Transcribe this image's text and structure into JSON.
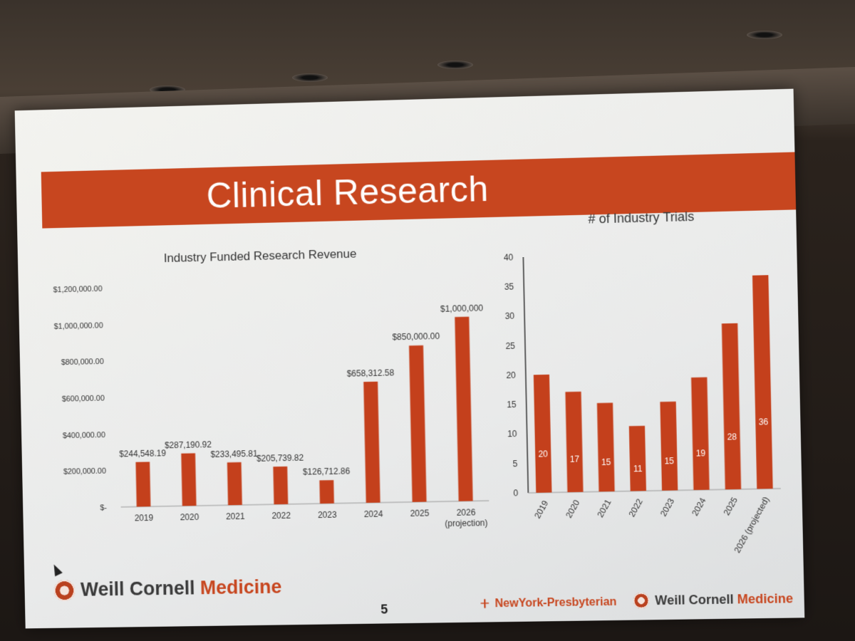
{
  "slide": {
    "title": "Clinical Research",
    "page_number": "5",
    "footer_left": {
      "part1": "Weill Cornell ",
      "part2": "Medicine"
    },
    "footer_right_1": "NewYork-Presbyterian",
    "footer_right_2": {
      "part1": "Weill Cornell ",
      "part2": "Medicine"
    }
  },
  "colors": {
    "accent": "#c7461f",
    "bar": "#c4401c",
    "slide_bg": "#ececea",
    "text": "#333333"
  },
  "chart_data": [
    {
      "type": "bar",
      "title": "Industry Funded Research Revenue",
      "categories": [
        "2019",
        "2020",
        "2021",
        "2022",
        "2023",
        "2024",
        "2025",
        "2026\n(projection)"
      ],
      "category_lines": [
        [
          "2019"
        ],
        [
          "2020"
        ],
        [
          "2021"
        ],
        [
          "2022"
        ],
        [
          "2023"
        ],
        [
          "2024"
        ],
        [
          "2025"
        ],
        [
          "2026",
          "(projection)"
        ]
      ],
      "values": [
        244548.19,
        287190.92,
        233495.81,
        205739.82,
        126712.86,
        658312.58,
        850000,
        1000000
      ],
      "data_labels": [
        "$244,548.19",
        "$287,190.92",
        "$233,495.81",
        "$205,739.82",
        "$126,712.86",
        "$658,312.58",
        "$850,000.00",
        "$1,000,000"
      ],
      "ylim": [
        0,
        1200000
      ],
      "yticks": [
        0,
        200000,
        400000,
        600000,
        800000,
        1000000,
        1200000
      ],
      "ytick_labels": [
        "$-",
        "$200,000.00",
        "$400,000.00",
        "$600,000.00",
        "$800,000.00",
        "$1,000,000.00",
        "$1,200,000.00"
      ],
      "xlabel": "",
      "ylabel": ""
    },
    {
      "type": "bar",
      "title": "# of Industry Trials",
      "categories": [
        "2019",
        "2020",
        "2021",
        "2022",
        "2023",
        "2024",
        "2025",
        "2026 (projected)"
      ],
      "values": [
        20,
        17,
        15,
        11,
        15,
        19,
        28,
        36
      ],
      "data_labels": [
        "20",
        "17",
        "15",
        "11",
        "15",
        "19",
        "28",
        "36"
      ],
      "ylim": [
        0,
        40
      ],
      "yticks": [
        0,
        5,
        10,
        15,
        20,
        25,
        30,
        35,
        40
      ],
      "ytick_labels": [
        "0",
        "5",
        "10",
        "15",
        "20",
        "25",
        "30",
        "35",
        "40"
      ],
      "xlabel": "",
      "ylabel": ""
    }
  ]
}
